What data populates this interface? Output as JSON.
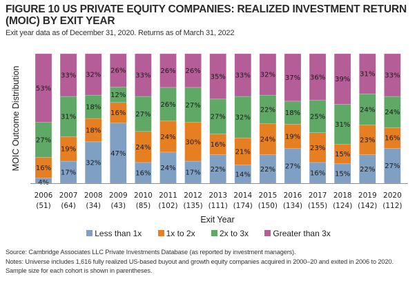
{
  "header": {
    "title": "FIGURE 10 US PRIVATE EQUITY COMPANIES: REALIZED INVESTMENT RETURN (MOIC) BY EXIT YEAR",
    "subtitle": "Exit year data as of December 31, 2020. Returns as of March 31, 2022"
  },
  "chart_data": {
    "type": "bar",
    "stacked": true,
    "percent_stacked": true,
    "title": "US Private Equity Companies: Realized Investment Return (MOIC) by Exit Year",
    "xlabel": "Exit Year",
    "ylabel": "MOIC Outcome Distribution",
    "ylim": [
      0,
      100
    ],
    "grid": false,
    "legend_position": "bottom",
    "categories": [
      "2006",
      "2007",
      "2008",
      "2009",
      "2010",
      "2011",
      "2012",
      "2013",
      "2014",
      "2015",
      "2016",
      "2017",
      "2018",
      "2019",
      "2020"
    ],
    "sample_sizes": [
      "(51)",
      "(64)",
      "(34)",
      "(43)",
      "(85)",
      "(102)",
      "(135)",
      "(111)",
      "(174)",
      "(150)",
      "(134)",
      "(155)",
      "(124)",
      "(142)",
      "(112)"
    ],
    "series": [
      {
        "name": "Less than 1x",
        "color": "#7f9fc3",
        "values": [
          4,
          17,
          32,
          47,
          16,
          24,
          17,
          22,
          14,
          22,
          27,
          16,
          15,
          22,
          27
        ]
      },
      {
        "name": "1x to 2x",
        "color": "#e67e22",
        "values": [
          16,
          19,
          18,
          16,
          24,
          24,
          30,
          16,
          21,
          24,
          19,
          23,
          15,
          23,
          16
        ]
      },
      {
        "name": "2x to 3x",
        "color": "#5fa865",
        "values": [
          27,
          31,
          18,
          12,
          27,
          26,
          27,
          27,
          32,
          22,
          18,
          25,
          31,
          24,
          24
        ]
      },
      {
        "name": "Greater than 3x",
        "color": "#b55d96",
        "values": [
          53,
          33,
          32,
          26,
          33,
          26,
          26,
          35,
          33,
          32,
          37,
          36,
          39,
          31,
          33
        ]
      }
    ]
  },
  "legend": {
    "items": [
      {
        "label": "Less than 1x",
        "color": "#7f9fc3"
      },
      {
        "label": "1x to 2x",
        "color": "#e67e22"
      },
      {
        "label": "2x to 3x",
        "color": "#5fa865"
      },
      {
        "label": "Greater than 3x",
        "color": "#b55d96"
      }
    ]
  },
  "footer": {
    "source": "Source: Cambridge Associates LLC Private Investments Database (as reported by investment managers).",
    "notes": "Notes: Universe includes 1,616 fully realized US-based buyout and growth equity companies acquired in 2000–20 and exited in 2006 to 2020. Sample size for each cohort is shown in parentheses."
  }
}
